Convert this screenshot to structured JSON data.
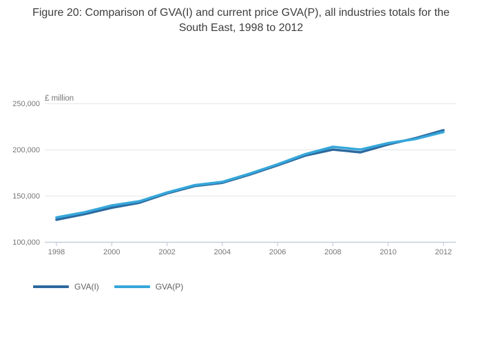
{
  "title": "Figure 20: Comparison of GVA(I) and current price GVA(P), all industries totals for the South East, 1998 to 2012",
  "colors": {
    "gva_i": "#2c699e",
    "gva_p": "#36a7da",
    "axis_line": "#c3cfdb",
    "grid_line": "#e6e6e6",
    "tick_label": "#757575",
    "title_text": "#3c3c3c",
    "legend_text": "#5f5f5f"
  },
  "y_axis": {
    "label": "£ million",
    "tick_labels": [
      "100,000",
      "150,000",
      "200,000",
      "250,000"
    ],
    "tick_values": [
      100000,
      150000,
      200000,
      250000
    ]
  },
  "x_axis": {
    "tick_labels": [
      "1998",
      "2000",
      "2002",
      "2004",
      "2006",
      "2008",
      "2010",
      "2012"
    ]
  },
  "legend": [
    {
      "label": "GVA(I)",
      "color": "#2c699e"
    },
    {
      "label": "GVA(P)",
      "color": "#36a7da"
    }
  ],
  "chart_data": {
    "type": "line",
    "title": "Figure 20: Comparison of GVA(I) and current price GVA(P), all industries totals for the South East, 1998 to 2012",
    "xlabel": "",
    "ylabel": "£ million",
    "x": [
      1998,
      1999,
      2000,
      2001,
      2002,
      2003,
      2004,
      2005,
      2006,
      2007,
      2008,
      2009,
      2010,
      2011,
      2012
    ],
    "series": [
      {
        "name": "GVA(I)",
        "color": "#2c699e",
        "values": [
          124000,
          130000,
          137000,
          142500,
          152500,
          160500,
          164000,
          173000,
          183000,
          193500,
          200000,
          197000,
          205500,
          212500,
          221000
        ]
      },
      {
        "name": "GVA(P)",
        "color": "#36a7da",
        "values": [
          126500,
          132000,
          139500,
          144000,
          153500,
          161500,
          165000,
          174000,
          184000,
          195000,
          203000,
          200000,
          207000,
          211500,
          219000
        ]
      }
    ],
    "xlim": [
      1998,
      2012
    ],
    "ylim": [
      100000,
      250000
    ],
    "grid": "horizontal",
    "legend_position": "bottom-left"
  }
}
